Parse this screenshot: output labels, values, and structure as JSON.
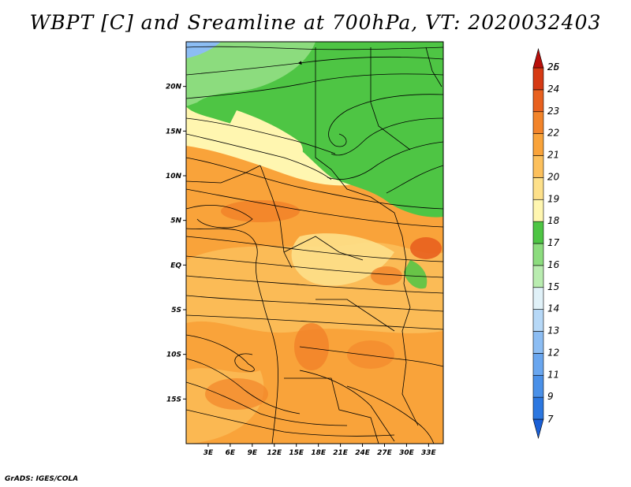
{
  "title": "WBPT [C] and Sreamline at 700hPa, VT: 2020032403",
  "footer": "GrADS: IGES/COLA",
  "map": {
    "lon_range": [
      0,
      35
    ],
    "lat_range": [
      -20,
      25
    ],
    "lat_ticks": [
      {
        "value": 20,
        "label": "20N"
      },
      {
        "value": 15,
        "label": "15N"
      },
      {
        "value": 10,
        "label": "10N"
      },
      {
        "value": 5,
        "label": "5N"
      },
      {
        "value": 0,
        "label": "EQ"
      },
      {
        "value": -5,
        "label": "5S"
      },
      {
        "value": -10,
        "label": "10S"
      },
      {
        "value": -15,
        "label": "15S"
      }
    ],
    "lon_ticks": [
      {
        "value": 3,
        "label": "3E"
      },
      {
        "value": 6,
        "label": "6E"
      },
      {
        "value": 9,
        "label": "9E"
      },
      {
        "value": 12,
        "label": "12E"
      },
      {
        "value": 15,
        "label": "15E"
      },
      {
        "value": 18,
        "label": "18E"
      },
      {
        "value": 21,
        "label": "21E"
      },
      {
        "value": 24,
        "label": "24E"
      },
      {
        "value": 27,
        "label": "27E"
      },
      {
        "value": 30,
        "label": "30E"
      },
      {
        "value": 33,
        "label": "33E"
      }
    ]
  },
  "colorbar": {
    "labels": [
      "7",
      "9",
      "11",
      "12",
      "13",
      "14",
      "15",
      "16",
      "17",
      "18",
      "19",
      "20",
      "21",
      "22",
      "23",
      "24",
      "25",
      "26"
    ],
    "colors": [
      "#1a5fd6",
      "#2c77e0",
      "#4a90e8",
      "#69a6ef",
      "#8cbdf3",
      "#b6d8f7",
      "#e0f1f8",
      "#b9ecb0",
      "#8cdc7e",
      "#4ec544",
      "#fff6b0",
      "#fde08a",
      "#fcc05c",
      "#f9a33a",
      "#f2842a",
      "#e8611f",
      "#d63a14",
      "#b80f0a"
    ]
  }
}
